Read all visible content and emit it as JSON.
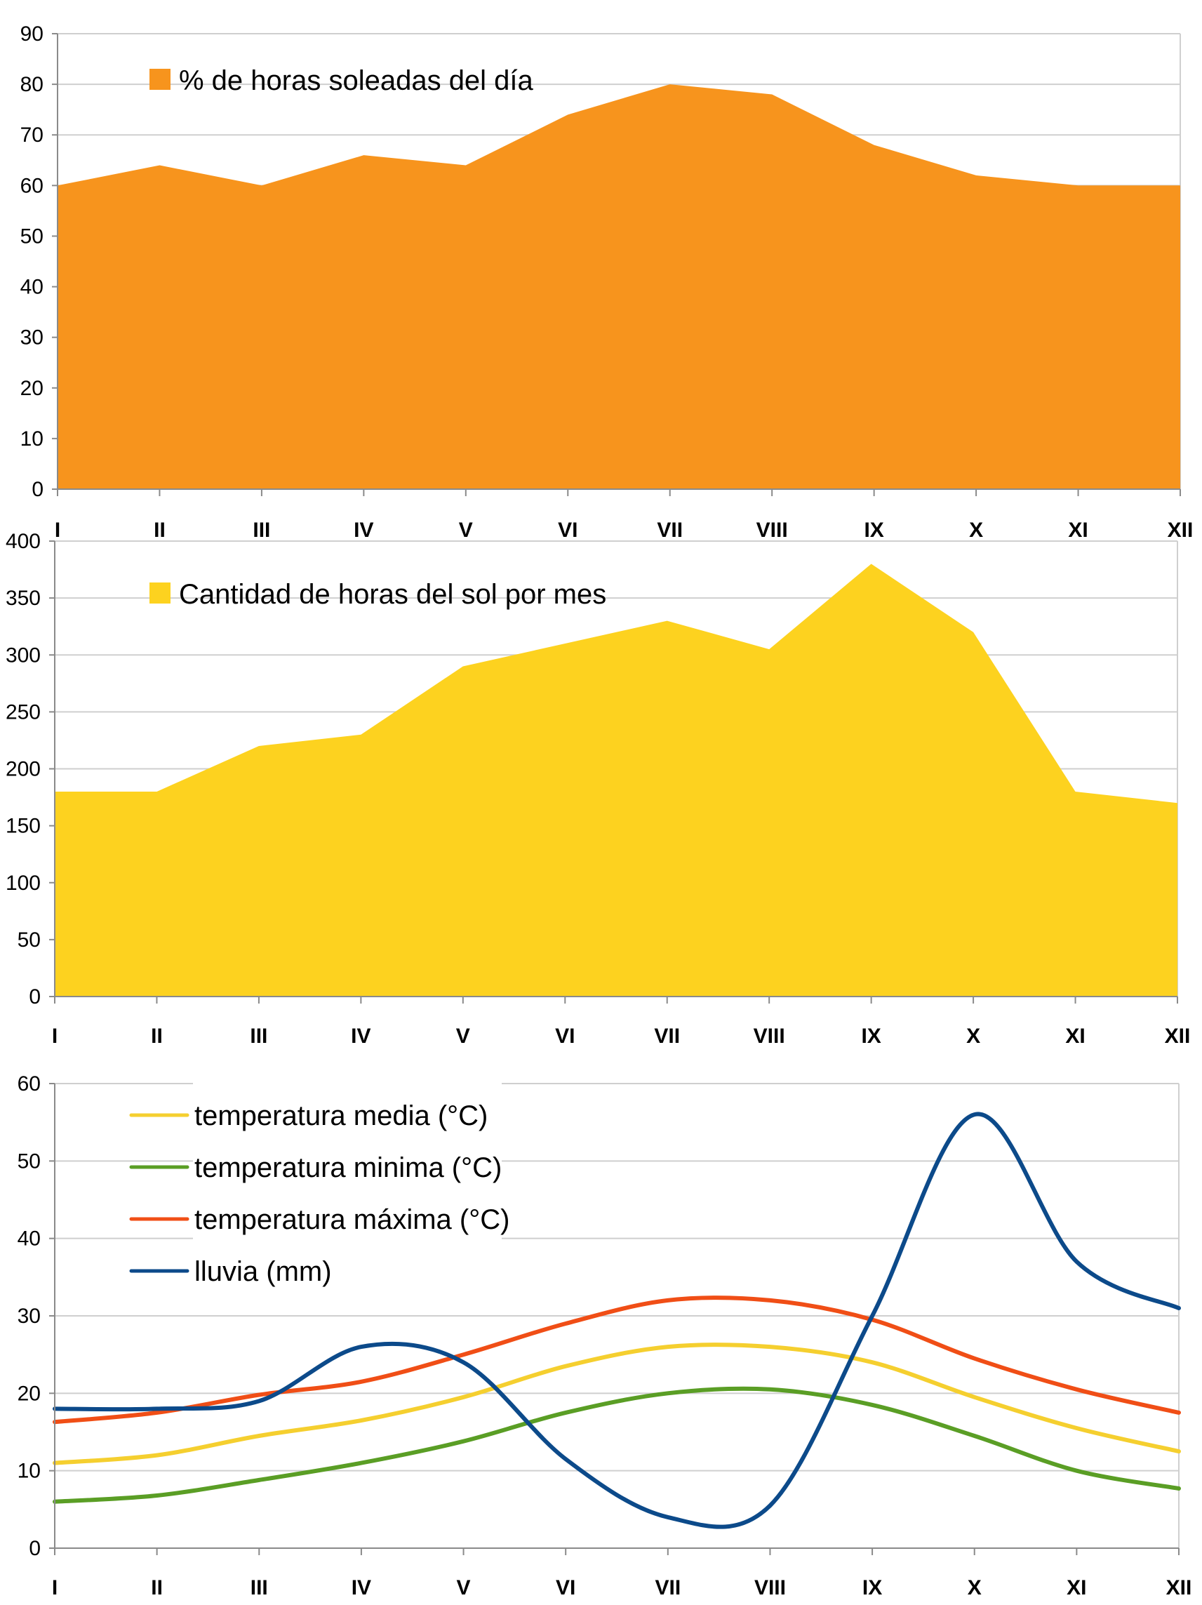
{
  "colors": {
    "sun_pct": "#F7941D",
    "sun_hours": "#FDD21F",
    "temp_mean": "#F5CF2F",
    "temp_min": "#5A9E25",
    "temp_max": "#F04E16",
    "rain": "#0C4A8A",
    "grid": "#cfcfcf",
    "axis": "#8a8a8a"
  },
  "chart_data": [
    {
      "type": "area",
      "categories": [
        "I",
        "II",
        "III",
        "IV",
        "V",
        "VI",
        "VII",
        "VIII",
        "IX",
        "X",
        "XI",
        "XII"
      ],
      "series": [
        {
          "name": "% de horas soleadas del día",
          "values": [
            60,
            64,
            60,
            66,
            64,
            74,
            80,
            78,
            68,
            62,
            60,
            60
          ]
        }
      ],
      "ylim": [
        0,
        90
      ],
      "yticks": [
        0,
        10,
        20,
        30,
        40,
        50,
        60,
        70,
        80,
        90
      ],
      "grid": true,
      "legend": "top-left"
    },
    {
      "type": "area",
      "categories": [
        "I",
        "II",
        "III",
        "IV",
        "V",
        "VI",
        "VII",
        "VIII",
        "IX",
        "X",
        "XI",
        "XII"
      ],
      "series": [
        {
          "name": "Cantidad de horas del sol por mes",
          "values": [
            180,
            180,
            220,
            230,
            290,
            310,
            330,
            305,
            380,
            320,
            180,
            170
          ]
        }
      ],
      "ylim": [
        0,
        400
      ],
      "yticks": [
        0,
        50,
        100,
        150,
        200,
        250,
        300,
        350,
        400
      ],
      "grid": true,
      "legend": "top-left"
    },
    {
      "type": "line",
      "categories": [
        "I",
        "II",
        "III",
        "IV",
        "V",
        "VI",
        "VII",
        "VIII",
        "IX",
        "X",
        "XI",
        "XII"
      ],
      "series": [
        {
          "name": "temperatura media (°C)",
          "values": [
            11,
            12,
            14.5,
            16.5,
            19.5,
            23.5,
            26,
            26,
            24,
            19.5,
            15.5,
            12.5
          ]
        },
        {
          "name": "temperatura minima (°C)",
          "values": [
            6,
            6.8,
            8.8,
            11,
            13.8,
            17.5,
            20,
            20.5,
            18.5,
            14.5,
            10,
            7.7
          ]
        },
        {
          "name": "temperatura máxima (°C)",
          "values": [
            16.3,
            17.5,
            19.8,
            21.5,
            25,
            29,
            32,
            32,
            29.5,
            24.5,
            20.5,
            17.5
          ]
        },
        {
          "name": "lluvia (mm)",
          "values": [
            18,
            18,
            19,
            26,
            24,
            11.5,
            4,
            5.5,
            30,
            56,
            37,
            31
          ]
        }
      ],
      "ylim": [
        0,
        60
      ],
      "yticks": [
        0,
        10,
        20,
        30,
        40,
        50,
        60
      ],
      "grid": true,
      "legend": "top-left"
    }
  ]
}
